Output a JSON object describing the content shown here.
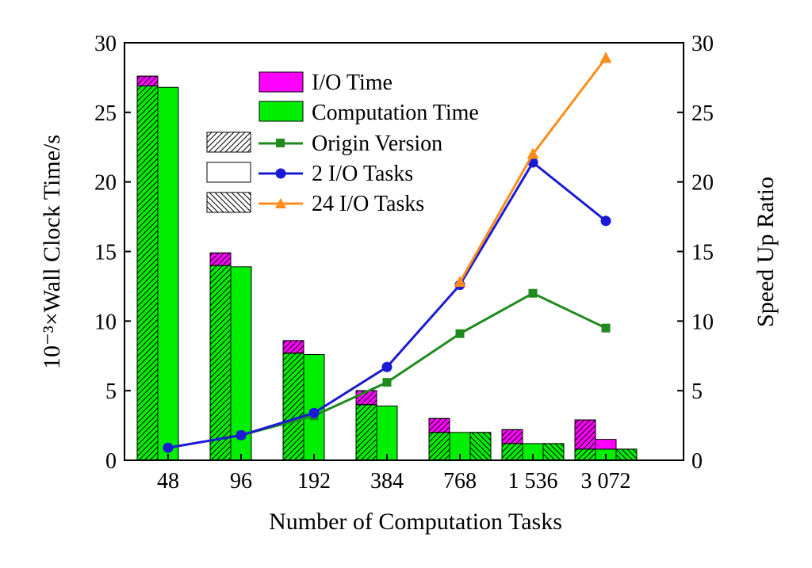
{
  "chart_data": {
    "type": "bar",
    "title": "",
    "xlabel": "Number of Computation Tasks",
    "ylabel_left": "10⁻³×Wall Clock Time/s",
    "ylabel_right": "Speed Up Ratio",
    "categories": [
      "48",
      "96",
      "192",
      "384",
      "768",
      "1 536",
      "3 072"
    ],
    "ylim_left": [
      0,
      30
    ],
    "ylim_right": [
      0,
      30
    ],
    "yticks": [
      "0",
      "5",
      "10",
      "15",
      "20",
      "25",
      "30"
    ],
    "grid": false,
    "legend_position": "top-center",
    "colors": {
      "io": "#ff00ff",
      "computation": "#00ee00",
      "origin": "#1f8a1f",
      "two_io": "#1a1ad6",
      "twentyfour_io": "#ff8c1a"
    },
    "legend": {
      "io_time": "I/O Time",
      "computation_time": "Computation Time",
      "origin_version": "Origin Version",
      "two_io_tasks": "2 I/O Tasks",
      "twentyfour_io_tasks": "24 I/O Tasks"
    },
    "bar_groups": [
      {
        "name": "Origin Version",
        "pattern": "forward-hatch",
        "computation": [
          26.9,
          14.0,
          7.7,
          4.0,
          2.0,
          1.2,
          0.8
        ],
        "io": [
          0.7,
          0.9,
          0.9,
          1.0,
          1.0,
          1.0,
          2.1
        ]
      },
      {
        "name": "2 I/O Tasks",
        "pattern": "none",
        "computation": [
          26.8,
          13.9,
          7.6,
          3.9,
          2.0,
          1.2,
          0.8
        ],
        "io": [
          null,
          null,
          null,
          null,
          null,
          0,
          0.7
        ]
      },
      {
        "name": "24 I/O Tasks",
        "pattern": "back-hatch",
        "computation": [
          null,
          null,
          null,
          null,
          2.0,
          1.2,
          0.8
        ],
        "io": [
          null,
          null,
          null,
          null,
          0,
          0,
          0
        ]
      }
    ],
    "series": [
      {
        "name": "Origin Version",
        "marker": "square",
        "values": [
          null,
          1.8,
          3.2,
          5.6,
          9.1,
          12.0,
          9.5
        ]
      },
      {
        "name": "2 I/O Tasks",
        "marker": "circle",
        "values": [
          0.9,
          1.8,
          3.4,
          6.7,
          12.6,
          21.4,
          17.2
        ]
      },
      {
        "name": "24 I/O Tasks",
        "marker": "triangle",
        "values": [
          null,
          null,
          null,
          null,
          12.8,
          22.0,
          28.9
        ]
      }
    ]
  }
}
